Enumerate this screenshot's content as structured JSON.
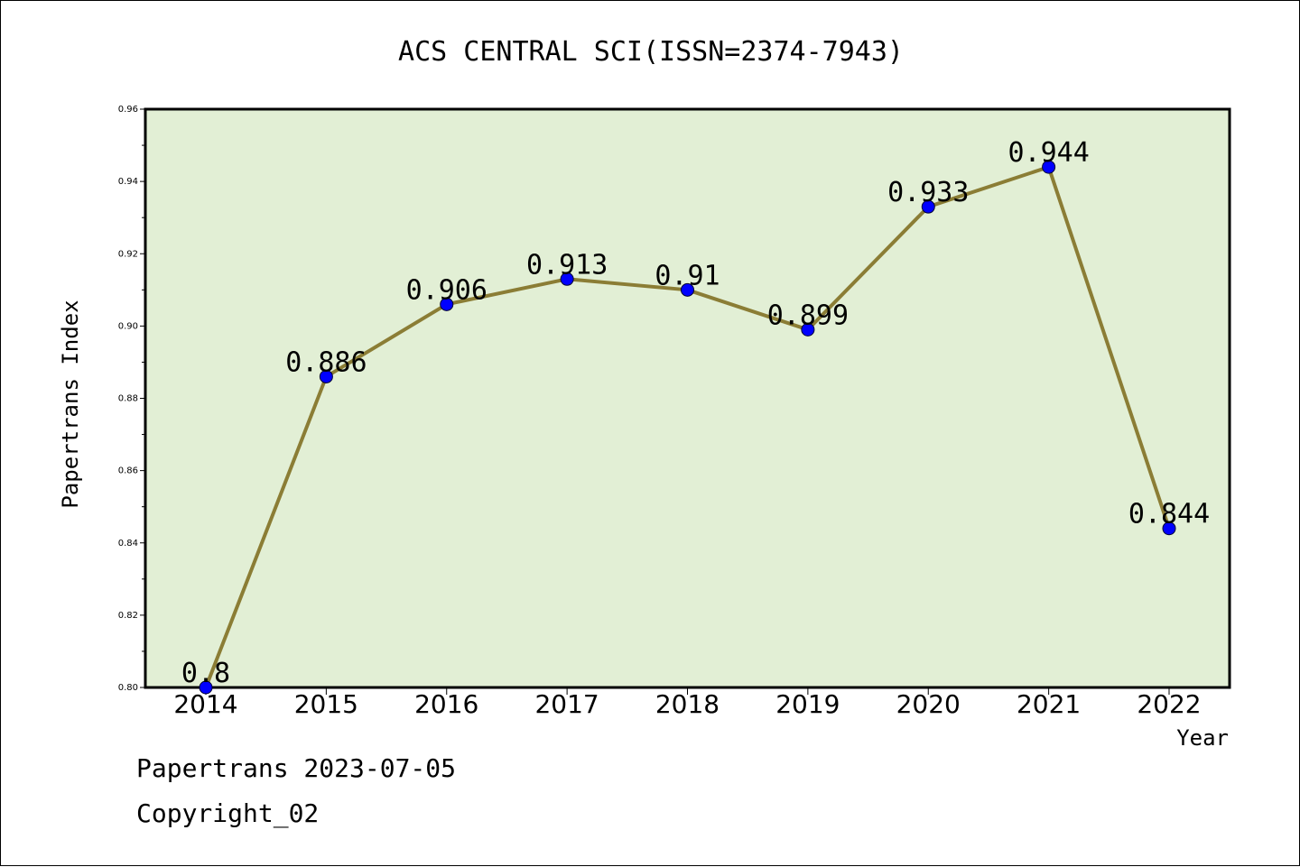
{
  "chart_data": {
    "type": "line",
    "title": "ACS CENTRAL SCI(ISSN=2374-7943)",
    "xlabel": "Year",
    "ylabel": "Papertrans Index",
    "categories": [
      "2014",
      "2015",
      "2016",
      "2017",
      "2018",
      "2019",
      "2020",
      "2021",
      "2022"
    ],
    "values": [
      0.8,
      0.886,
      0.906,
      0.913,
      0.91,
      0.899,
      0.933,
      0.944,
      0.844
    ],
    "data_labels": [
      "0.8",
      "0.886",
      "0.906",
      "0.913",
      "0.91",
      "0.899",
      "0.933",
      "0.944",
      "0.844"
    ],
    "ylim": [
      0.8,
      0.96
    ],
    "yticks": [
      0.8,
      0.82,
      0.84,
      0.86,
      0.88,
      0.9,
      0.92,
      0.94,
      0.96
    ],
    "ytick_labels": [
      "0.80",
      "0.82",
      "0.84",
      "0.86",
      "0.88",
      "0.90",
      "0.92",
      "0.94",
      "0.96"
    ],
    "grid": false,
    "colors": {
      "plot_background": "#e2efd5",
      "line": "#8b7d35",
      "marker": "#0000ff"
    }
  },
  "footer": {
    "line1": "Papertrans 2023-07-05",
    "line2": "Copyright_02"
  }
}
